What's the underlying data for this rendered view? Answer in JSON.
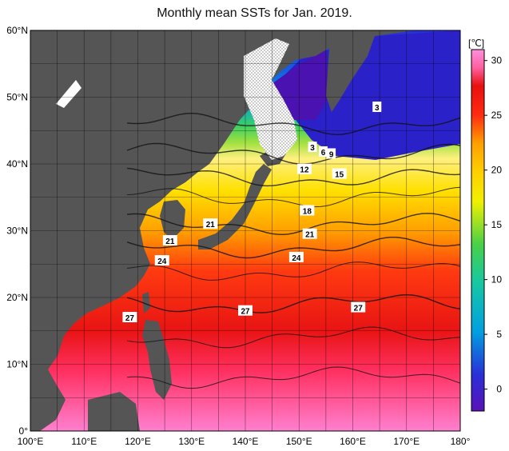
{
  "title": "Monthly mean SSTs for Jan. 2019.",
  "map": {
    "lon_labels": [
      "100°E",
      "110°E",
      "120°E",
      "130°E",
      "140°E",
      "150°E",
      "160°E",
      "170°E",
      "180°"
    ],
    "lat_labels": [
      "60°N",
      "50°N",
      "40°N",
      "30°N",
      "20°N",
      "10°N",
      "0°"
    ],
    "lon_range": [
      100,
      180
    ],
    "lat_range": [
      0,
      60
    ],
    "grid_step_deg": 5,
    "contour_labels": [
      {
        "text": "3",
        "lon": 164.5,
        "lat": 48.5
      },
      {
        "text": "3",
        "lon": 152.5,
        "lat": 42.5
      },
      {
        "text": "6",
        "lon": 154.5,
        "lat": 41.8
      },
      {
        "text": "9",
        "lon": 156.0,
        "lat": 41.5
      },
      {
        "text": "12",
        "lon": 151.0,
        "lat": 39.2
      },
      {
        "text": "15",
        "lon": 157.5,
        "lat": 38.5
      },
      {
        "text": "18",
        "lon": 151.5,
        "lat": 33.0
      },
      {
        "text": "21",
        "lon": 133.5,
        "lat": 31.0
      },
      {
        "text": "21",
        "lon": 126.0,
        "lat": 28.5
      },
      {
        "text": "21",
        "lon": 152.0,
        "lat": 29.5
      },
      {
        "text": "24",
        "lon": 124.5,
        "lat": 25.5
      },
      {
        "text": "24",
        "lon": 149.5,
        "lat": 26.0
      },
      {
        "text": "27",
        "lon": 140.0,
        "lat": 18.0
      },
      {
        "text": "27",
        "lon": 161.0,
        "lat": 18.5
      },
      {
        "text": "27",
        "lon": 118.5,
        "lat": 17.0
      }
    ],
    "colors": {
      "land": "#555555",
      "ice": "#ffffff"
    }
  },
  "colorbar": {
    "unit": "[℃]",
    "ticks": [
      "30",
      "25",
      "20",
      "15",
      "10",
      "5",
      "0"
    ],
    "range": [
      -2,
      31
    ],
    "stops": [
      "#5a12b8",
      "#2a2fd8",
      "#1460e0",
      "#00a0e0",
      "#18c8a0",
      "#48d048",
      "#a0e040",
      "#f0f000",
      "#ffd000",
      "#ffa000",
      "#ff6a00",
      "#ff2a10",
      "#e81010",
      "#ff60a0",
      "#ff90e0"
    ]
  }
}
